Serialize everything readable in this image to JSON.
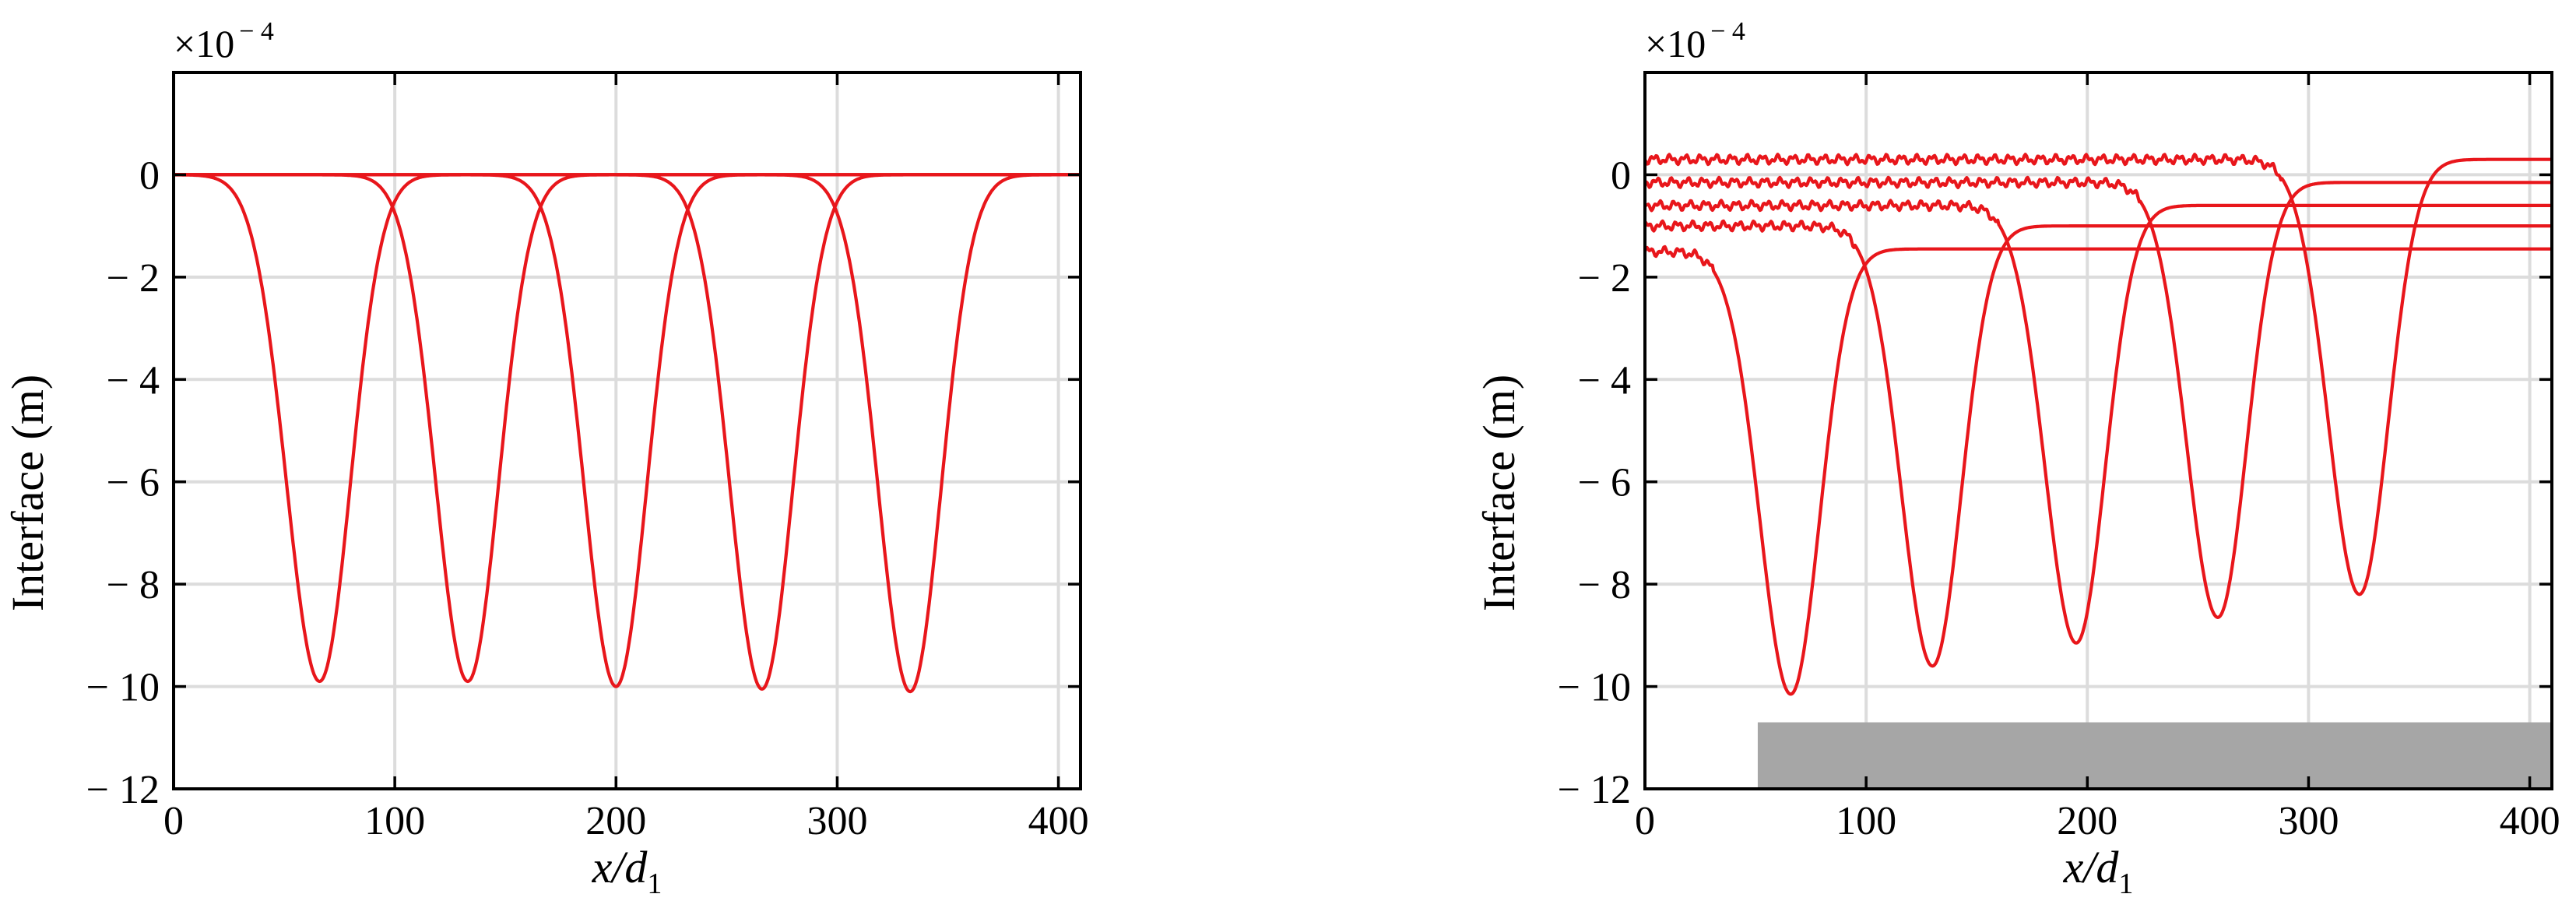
{
  "chart_data": [
    {
      "type": "line",
      "panel": "left",
      "xlabel_var": "x",
      "xlabel_sub_var": "d",
      "xlabel_sub": "1",
      "ylabel": "Interface (m)",
      "y_multiplier_base": "×10",
      "y_multiplier_exp": "− 4",
      "xlim": [
        0,
        410
      ],
      "ylim": [
        -12,
        2
      ],
      "xticks": [
        0,
        100,
        200,
        300,
        400
      ],
      "xtick_labels": [
        "0",
        "100",
        "200",
        "300",
        "400"
      ],
      "yticks": [
        0,
        -2,
        -4,
        -6,
        -8,
        -10,
        -12
      ],
      "ytick_labels": [
        "0",
        "− 2",
        "− 4",
        "− 6",
        "− 8",
        "− 10",
        "− 12"
      ],
      "grid": true,
      "line_color": "#e8161b",
      "series": [
        {
          "troughs": [
            {
              "x": 66,
              "y": -9.9,
              "left_w": 15,
              "right_w": 14
            }
          ],
          "baseline": 0.0
        },
        {
          "troughs": [
            {
              "x": 133,
              "y": -9.9,
              "left_w": 14.5,
              "right_w": 14
            }
          ],
          "baseline": 0.0
        },
        {
          "troughs": [
            {
              "x": 200,
              "y": -10.0,
              "left_w": 14.5,
              "right_w": 14
            }
          ],
          "baseline": 0.0
        },
        {
          "troughs": [
            {
              "x": 266,
              "y": -10.05,
              "left_w": 14.5,
              "right_w": 14
            }
          ],
          "baseline": 0.0
        },
        {
          "troughs": [
            {
              "x": 333,
              "y": -10.1,
              "left_w": 14.5,
              "right_w": 14
            }
          ],
          "baseline": 0.0
        }
      ]
    },
    {
      "type": "line",
      "panel": "right",
      "xlabel_var": "x",
      "xlabel_sub_var": "d",
      "xlabel_sub": "1",
      "ylabel": "Interface (m)",
      "y_multiplier_base": "×10",
      "y_multiplier_exp": "− 4",
      "xlim": [
        0,
        410
      ],
      "ylim": [
        -12,
        2
      ],
      "xticks": [
        0,
        100,
        200,
        300,
        400
      ],
      "xtick_labels": [
        "0",
        "100",
        "200",
        "300",
        "400"
      ],
      "yticks": [
        0,
        -2,
        -4,
        -6,
        -8,
        -10,
        -12
      ],
      "ytick_labels": [
        "0",
        "− 2",
        "− 4",
        "− 6",
        "− 8",
        "− 10",
        "− 12"
      ],
      "grid": true,
      "line_color": "#e8161b",
      "obstacle": {
        "x_start": 51,
        "x_end": 410,
        "y_top": -10.7,
        "y_bottom": -12,
        "color": "#a6a6a6"
      },
      "series": [
        {
          "troughs": [
            {
              "x": 66,
              "y": -10.15,
              "left_w": 14,
              "right_w": 13
            }
          ],
          "pre": -1.5,
          "post": -1.45
        },
        {
          "troughs": [
            {
              "x": 130,
              "y": -9.6,
              "left_w": 14,
              "right_w": 13
            }
          ],
          "pre": -1.0,
          "post": -1.0
        },
        {
          "troughs": [
            {
              "x": 195,
              "y": -9.15,
              "left_w": 14,
              "right_w": 13
            }
          ],
          "pre": -0.6,
          "post": -0.6
        },
        {
          "troughs": [
            {
              "x": 259,
              "y": -8.65,
              "left_w": 14,
              "right_w": 13
            }
          ],
          "pre": -0.15,
          "post": -0.15
        },
        {
          "troughs": [
            {
              "x": 323,
              "y": -8.2,
              "left_w": 14,
              "right_w": 13
            }
          ],
          "pre": 0.3,
          "post": 0.3
        }
      ]
    }
  ]
}
